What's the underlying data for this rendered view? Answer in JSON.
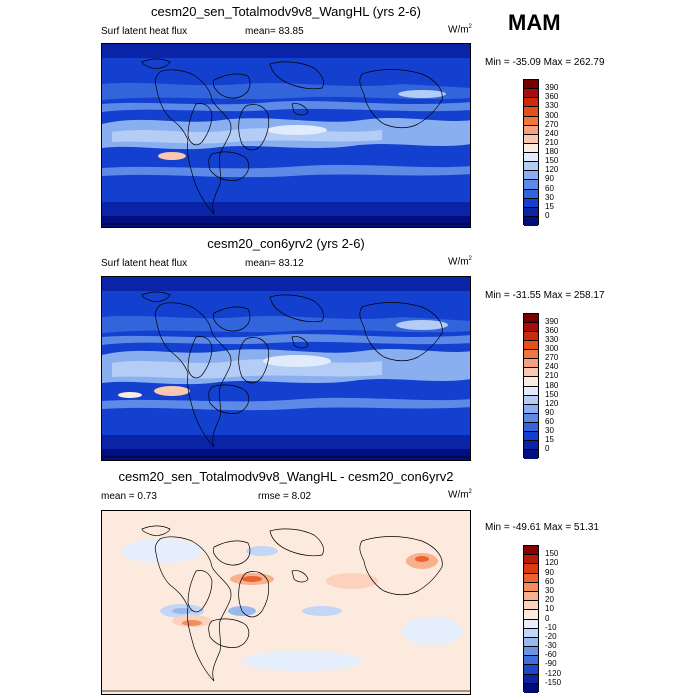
{
  "season": "MAM",
  "panels": [
    {
      "title": "cesm20_sen_Totalmodv9v8_WangHL (yrs 2-6)",
      "left_label": "Surf latent heat flux",
      "center_label": "mean=  83.85",
      "units": "W/m",
      "units_sup": "2",
      "minmax": "Min = -35.09 Max = 262.79",
      "colorbar": {
        "levels": [
          "390",
          "360",
          "330",
          "300",
          "270",
          "240",
          "210",
          "180",
          "150",
          "120",
          "90",
          "60",
          "30",
          "15",
          "0"
        ],
        "colors": [
          "#7a0000",
          "#a80d0d",
          "#cc2a0a",
          "#e5501a",
          "#f07640",
          "#f6a080",
          "#fac8b0",
          "#fdebe0",
          "#e0ecfb",
          "#b4cdf6",
          "#8aaff0",
          "#5c8ae6",
          "#3264dc",
          "#1340cf",
          "#0a24a8",
          "#000e80"
        ]
      }
    },
    {
      "title": "cesm20_con6yrv2 (yrs 2-6)",
      "left_label": "Surf latent heat flux",
      "center_label": "mean=  83.12",
      "units": "W/m",
      "units_sup": "2",
      "minmax": "Min = -31.55 Max = 258.17",
      "colorbar": {
        "levels": [
          "390",
          "360",
          "330",
          "300",
          "270",
          "240",
          "210",
          "180",
          "150",
          "120",
          "90",
          "60",
          "30",
          "15",
          "0"
        ],
        "colors": [
          "#7a0000",
          "#a80d0d",
          "#cc2a0a",
          "#e5501a",
          "#f07640",
          "#f6a080",
          "#fac8b0",
          "#fdebe0",
          "#e0ecfb",
          "#b4cdf6",
          "#8aaff0",
          "#5c8ae6",
          "#3264dc",
          "#1340cf",
          "#0a24a8",
          "#000e80"
        ]
      }
    },
    {
      "title": "cesm20_sen_Totalmodv9v8_WangHL - cesm20_con6yrv2",
      "left_label": "mean =   0.73",
      "center_label": "rmse =   8.02",
      "units": "W/m",
      "units_sup": "2",
      "minmax": "Min = -49.61 Max =  51.31",
      "colorbar": {
        "levels": [
          "150",
          "120",
          "90",
          "60",
          "30",
          "20",
          "10",
          "0",
          "-10",
          "-20",
          "-30",
          "-60",
          "-90",
          "-120",
          "-150"
        ],
        "colors": [
          "#8a0000",
          "#b81a0a",
          "#dc3a14",
          "#ee6232",
          "#f48c5e",
          "#f9b08e",
          "#fcd2bc",
          "#fdeade",
          "#e4eefc",
          "#c4d6f6",
          "#98b8ee",
          "#6a94e4",
          "#3e6edc",
          "#1e46c8",
          "#0c24a0",
          "#000a78"
        ]
      }
    }
  ],
  "chart_data": [
    {
      "type": "heatmap",
      "title": "cesm20_sen_Totalmodv9v8_WangHL (yrs 2-6)",
      "variable": "Surf latent heat flux",
      "mean": 83.85,
      "min": -35.09,
      "max": 262.79,
      "units": "W/m2",
      "contour_levels": [
        0,
        15,
        30,
        60,
        90,
        120,
        150,
        180,
        210,
        240,
        270,
        300,
        330,
        360,
        390
      ]
    },
    {
      "type": "heatmap",
      "title": "cesm20_con6yrv2 (yrs 2-6)",
      "variable": "Surf latent heat flux",
      "mean": 83.12,
      "min": -31.55,
      "max": 258.17,
      "units": "W/m2",
      "contour_levels": [
        0,
        15,
        30,
        60,
        90,
        120,
        150,
        180,
        210,
        240,
        270,
        300,
        330,
        360,
        390
      ]
    },
    {
      "type": "heatmap",
      "title": "cesm20_sen_Totalmodv9v8_WangHL - cesm20_con6yrv2",
      "mean": 0.73,
      "rmse": 8.02,
      "min": -49.61,
      "max": 51.31,
      "units": "W/m2",
      "contour_levels": [
        -150,
        -120,
        -90,
        -60,
        -30,
        -20,
        -10,
        0,
        10,
        20,
        30,
        60,
        90,
        120,
        150
      ]
    }
  ]
}
